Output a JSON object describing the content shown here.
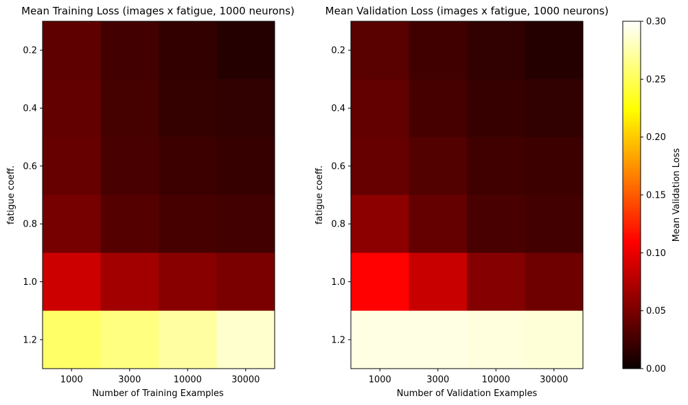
{
  "chart_data": [
    {
      "type": "heatmap",
      "title": "Mean Training Loss (images x fatigue, 1000 neurons)",
      "xlabel": "Number of Training Examples",
      "ylabel": "fatigue coeff.",
      "x_categories": [
        "1000",
        "3000",
        "10000",
        "30000"
      ],
      "y_categories": [
        "0.2",
        "0.4",
        "0.6",
        "0.8",
        "1.0",
        "1.2"
      ],
      "values": [
        [
          0.038,
          0.025,
          0.018,
          0.012
        ],
        [
          0.039,
          0.026,
          0.019,
          0.017
        ],
        [
          0.041,
          0.028,
          0.022,
          0.02
        ],
        [
          0.048,
          0.033,
          0.027,
          0.025
        ],
        [
          0.087,
          0.068,
          0.056,
          0.05
        ],
        [
          0.255,
          0.262,
          0.272,
          0.285
        ]
      ]
    },
    {
      "type": "heatmap",
      "title": "Mean Validation Loss (images x fatigue, 1000 neurons)",
      "xlabel": "Number of Validation Examples",
      "ylabel": "fatigue coeff.",
      "x_categories": [
        "1000",
        "3000",
        "10000",
        "30000"
      ],
      "y_categories": [
        "0.2",
        "0.4",
        "0.6",
        "0.8",
        "1.0",
        "1.2"
      ],
      "values": [
        [
          0.035,
          0.024,
          0.017,
          0.012
        ],
        [
          0.039,
          0.027,
          0.02,
          0.017
        ],
        [
          0.041,
          0.032,
          0.024,
          0.022
        ],
        [
          0.058,
          0.04,
          0.028,
          0.025
        ],
        [
          0.11,
          0.085,
          0.055,
          0.045
        ],
        [
          0.292,
          0.292,
          0.29,
          0.288
        ]
      ]
    }
  ],
  "colorbar": {
    "label": "Mean Validation Loss",
    "range": [
      0.0,
      0.3
    ],
    "ticks": [
      "0.00",
      "0.05",
      "0.10",
      "0.15",
      "0.20",
      "0.25",
      "0.30"
    ],
    "colormap": "hot"
  }
}
